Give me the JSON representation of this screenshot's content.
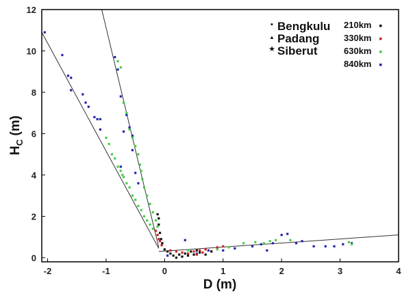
{
  "chart_data": {
    "type": "scatter",
    "title": "",
    "xlabel": "D (m)",
    "ylabel_main": "H",
    "ylabel_sub": "C",
    "ylabel_unit": " (m)",
    "xlim": [
      -2.1,
      4
    ],
    "ylim": [
      -0.2,
      12
    ],
    "xticks": [
      -2,
      -1,
      0,
      1,
      2,
      3,
      4
    ],
    "yticks": [
      0,
      2,
      4,
      6,
      8,
      10,
      12
    ],
    "grid": false,
    "legend_locations": {
      "position": "top-right",
      "entries": [
        {
          "label": "Bengkulu",
          "marker": "square"
        },
        {
          "label": "Padang",
          "marker": "triangle"
        },
        {
          "label": "Siberut",
          "marker": "star"
        }
      ]
    },
    "legend_distances": {
      "position": "top-right",
      "entries": [
        {
          "label": "210km",
          "color": "#111111"
        },
        {
          "label": "330km",
          "color": "#cc2222"
        },
        {
          "label": "630km",
          "color": "#44cc44"
        },
        {
          "label": "840km",
          "color": "#2222aa"
        }
      ]
    },
    "fit_lines": [
      {
        "x": [
          -2.1,
          -0.1
        ],
        "y": [
          10.9,
          0.45
        ]
      },
      {
        "x": [
          -1.1,
          -0.1
        ],
        "y": [
          12.3,
          0.5
        ]
      },
      {
        "x": [
          -0.1,
          4.0
        ],
        "y": [
          0.3,
          1.1
        ]
      }
    ],
    "series": [
      {
        "name": "840km",
        "color": "#2222aa",
        "points": [
          [
            -2.05,
            10.9
          ],
          [
            -1.75,
            9.8
          ],
          [
            -1.65,
            8.8
          ],
          [
            -1.6,
            8.7
          ],
          [
            -1.6,
            8.1
          ],
          [
            -1.4,
            7.9
          ],
          [
            -1.35,
            7.5
          ],
          [
            -1.3,
            7.3
          ],
          [
            -1.2,
            6.8
          ],
          [
            -1.15,
            6.7
          ],
          [
            -1.1,
            6.7
          ],
          [
            -1.1,
            6.2
          ],
          [
            -0.85,
            9.7
          ],
          [
            -0.8,
            9.1
          ],
          [
            -0.75,
            7.8
          ],
          [
            -0.7,
            7.5
          ],
          [
            -0.65,
            6.9
          ],
          [
            -0.6,
            6.3
          ],
          [
            -0.7,
            6.1
          ],
          [
            -0.55,
            5.9
          ],
          [
            -0.75,
            4.4
          ],
          [
            -0.55,
            5.2
          ],
          [
            -0.5,
            4.1
          ],
          [
            -0.45,
            3.6
          ],
          [
            0.05,
            0.1
          ],
          [
            0.35,
            0.85
          ],
          [
            0.55,
            0.2
          ],
          [
            0.75,
            0.35
          ],
          [
            1.0,
            0.35
          ],
          [
            1.2,
            0.45
          ],
          [
            1.5,
            0.55
          ],
          [
            1.65,
            0.65
          ],
          [
            1.75,
            0.35
          ],
          [
            1.85,
            0.7
          ],
          [
            2.0,
            1.1
          ],
          [
            2.1,
            1.15
          ],
          [
            2.25,
            0.7
          ],
          [
            2.35,
            0.8
          ],
          [
            2.55,
            0.55
          ],
          [
            2.75,
            0.55
          ],
          [
            2.9,
            0.55
          ],
          [
            3.05,
            0.65
          ],
          [
            3.2,
            0.7
          ]
        ]
      },
      {
        "name": "630km",
        "color": "#44cc44",
        "points": [
          [
            -1.0,
            5.8
          ],
          [
            -0.95,
            5.5
          ],
          [
            -0.9,
            5.0
          ],
          [
            -0.85,
            4.8
          ],
          [
            -0.8,
            4.4
          ],
          [
            -0.75,
            4.2
          ],
          [
            -0.72,
            4.0
          ],
          [
            -0.7,
            3.9
          ],
          [
            -0.65,
            3.6
          ],
          [
            -0.6,
            3.4
          ],
          [
            -0.55,
            3.0
          ],
          [
            -0.5,
            2.8
          ],
          [
            -0.45,
            2.5
          ],
          [
            -0.4,
            2.3
          ],
          [
            -0.35,
            2.0
          ],
          [
            -0.3,
            1.8
          ],
          [
            -0.25,
            1.6
          ],
          [
            -0.2,
            1.4
          ],
          [
            -0.8,
            9.5
          ],
          [
            -0.75,
            9.2
          ],
          [
            -0.7,
            7.5
          ],
          [
            -0.65,
            7.0
          ],
          [
            -0.6,
            6.2
          ],
          [
            -0.55,
            5.8
          ],
          [
            -0.5,
            5.4
          ],
          [
            -0.45,
            5.0
          ],
          [
            -0.42,
            4.5
          ],
          [
            -0.4,
            4.2
          ],
          [
            -0.38,
            3.8
          ],
          [
            -0.35,
            3.4
          ],
          [
            -0.3,
            3.0
          ],
          [
            -0.25,
            2.6
          ],
          [
            -0.2,
            2.2
          ],
          [
            -0.15,
            1.8
          ],
          [
            -0.12,
            1.5
          ],
          [
            0.4,
            0.35
          ],
          [
            0.6,
            0.3
          ],
          [
            0.9,
            0.4
          ],
          [
            1.1,
            0.5
          ],
          [
            1.35,
            0.7
          ],
          [
            1.55,
            0.75
          ],
          [
            1.7,
            0.7
          ],
          [
            1.8,
            0.8
          ],
          [
            1.9,
            0.85
          ],
          [
            2.15,
            0.85
          ],
          [
            3.15,
            0.75
          ],
          [
            3.2,
            0.65
          ]
        ]
      },
      {
        "name": "330km",
        "color": "#cc2222",
        "points": [
          [
            -0.15,
            1.3
          ],
          [
            -0.12,
            1.1
          ],
          [
            -0.1,
            0.9
          ],
          [
            -0.08,
            0.8
          ],
          [
            -0.05,
            0.6
          ],
          [
            0.1,
            0.35
          ],
          [
            0.2,
            0.3
          ],
          [
            0.3,
            0.25
          ],
          [
            0.4,
            0.2
          ],
          [
            0.5,
            0.3
          ],
          [
            0.6,
            0.35
          ],
          [
            0.7,
            0.4
          ],
          [
            0.8,
            0.3
          ],
          [
            0.9,
            0.5
          ],
          [
            1.0,
            0.55
          ],
          [
            0.55,
            0.15
          ],
          [
            0.65,
            0.25
          ]
        ]
      },
      {
        "name": "210km",
        "color": "#111111",
        "points": [
          [
            -0.1,
            1.9
          ],
          [
            -0.12,
            2.1
          ],
          [
            -0.1,
            1.6
          ],
          [
            -0.08,
            1.2
          ],
          [
            -0.06,
            0.9
          ],
          [
            -0.04,
            0.7
          ],
          [
            0.0,
            0.4
          ],
          [
            0.05,
            0.3
          ],
          [
            0.1,
            0.2
          ],
          [
            0.15,
            0.1
          ],
          [
            0.2,
            0.0
          ],
          [
            0.25,
            0.15
          ],
          [
            0.3,
            0.05
          ],
          [
            0.35,
            0.2
          ],
          [
            0.4,
            0.1
          ],
          [
            0.45,
            0.3
          ],
          [
            0.5,
            0.15
          ],
          [
            0.55,
            0.35
          ],
          [
            0.6,
            0.25
          ],
          [
            0.7,
            0.15
          ],
          [
            0.8,
            0.3
          ]
        ]
      }
    ]
  }
}
